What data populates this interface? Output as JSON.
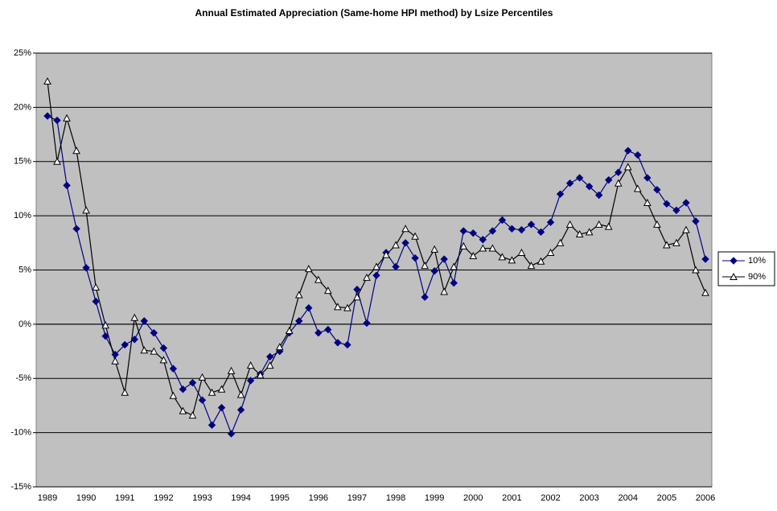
{
  "chart_data": {
    "type": "line",
    "title": "Annual Estimated Appreciation (Same-home HPI method) by Lsize Percentiles",
    "categories": [
      "1989",
      null,
      null,
      null,
      "1990",
      null,
      null,
      null,
      "1991",
      null,
      null,
      null,
      "1992",
      null,
      null,
      null,
      "1993",
      null,
      null,
      null,
      "1994",
      null,
      null,
      null,
      "1995",
      null,
      null,
      null,
      "1996",
      null,
      null,
      null,
      "1997",
      null,
      null,
      null,
      "1998",
      null,
      null,
      null,
      "1999",
      null,
      null,
      null,
      "2000",
      null,
      null,
      null,
      "2001",
      null,
      null,
      null,
      "2002",
      null,
      null,
      null,
      "2003",
      null,
      null,
      null,
      "2004",
      null,
      null,
      null,
      "2005",
      null,
      null,
      null,
      "2006"
    ],
    "series": [
      {
        "name": "10%",
        "color": "#000080",
        "marker": "diamond",
        "values": [
          19.2,
          18.8,
          12.8,
          8.8,
          5.2,
          2.1,
          -1.1,
          -2.8,
          -1.9,
          -1.4,
          0.3,
          -0.8,
          -2.2,
          -4.1,
          -6.0,
          -5.4,
          -7.0,
          -9.3,
          -7.7,
          -10.1,
          -7.9,
          -5.2,
          -4.6,
          -3.0,
          -2.5,
          -0.8,
          0.3,
          1.5,
          -0.8,
          -0.5,
          -1.7,
          -1.9,
          3.2,
          0.1,
          4.5,
          6.6,
          5.3,
          7.5,
          6.1,
          2.5,
          4.9,
          6.0,
          3.8,
          8.6,
          8.4,
          7.8,
          8.6,
          9.6,
          8.8,
          8.7,
          9.2,
          8.5,
          9.4,
          12.0,
          13.0,
          13.5,
          12.7,
          11.9,
          13.3,
          14.0,
          16.0,
          15.6,
          13.5,
          12.4,
          11.1,
          10.5,
          11.2,
          9.5,
          6.0
        ]
      },
      {
        "name": "90%",
        "color": "#000000",
        "marker": "triangle",
        "values": [
          22.4,
          15.0,
          19.0,
          16.0,
          10.5,
          3.4,
          -0.1,
          -3.4,
          -6.3,
          0.6,
          -2.4,
          -2.5,
          -3.3,
          -6.6,
          -8.0,
          -8.4,
          -4.9,
          -6.3,
          -6.0,
          -4.3,
          -6.5,
          -3.8,
          -4.7,
          -3.8,
          -2.1,
          -0.6,
          2.7,
          5.1,
          4.1,
          3.1,
          1.6,
          1.5,
          2.5,
          4.3,
          5.3,
          6.4,
          7.3,
          8.8,
          8.1,
          5.4,
          6.9,
          3.0,
          5.3,
          7.2,
          6.3,
          7.0,
          7.0,
          6.2,
          5.9,
          6.6,
          5.4,
          5.8,
          6.6,
          7.5,
          9.2,
          8.3,
          8.5,
          9.2,
          9.0,
          13.0,
          14.5,
          12.5,
          11.2,
          9.2,
          7.3,
          7.5,
          8.7,
          5.0,
          2.9
        ]
      }
    ],
    "ylim": [
      -15,
      25
    ],
    "yticks": [
      {
        "value": -15,
        "label": "-15%"
      },
      {
        "value": -10,
        "label": "-10%"
      },
      {
        "value": -5,
        "label": "-5%"
      },
      {
        "value": 0,
        "label": "0%"
      },
      {
        "value": 5,
        "label": "5%"
      },
      {
        "value": 10,
        "label": "10%"
      },
      {
        "value": 15,
        "label": "15%"
      },
      {
        "value": 20,
        "label": "20%"
      },
      {
        "value": 25,
        "label": "25%"
      }
    ],
    "grid": true,
    "plot_background": "#c0c0c0",
    "legend": "right"
  }
}
